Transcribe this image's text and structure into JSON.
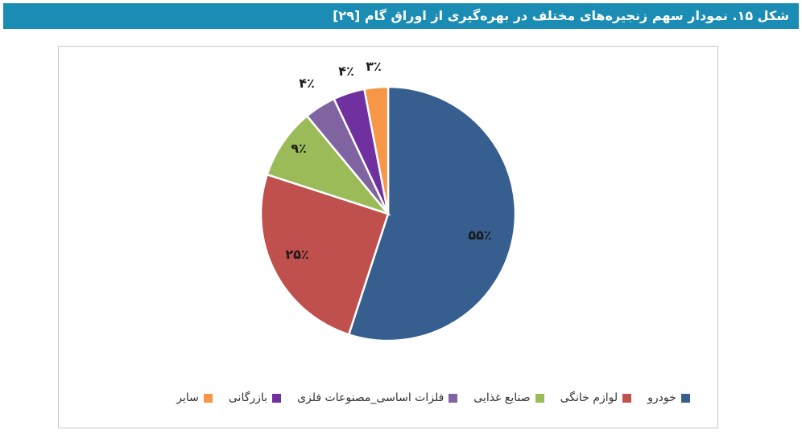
{
  "title": "شکل ۱۵. نمودار سهم زنجیره‌های مختلف در بهره‌گیری از اوراق گام [۲۹]",
  "chart_data": {
    "type": "pie",
    "slices": [
      {
        "label": "خودرو",
        "value": 55,
        "display": "۵۵٪",
        "color": "#365e8f"
      },
      {
        "label": "لوازم خانگی",
        "value": 25,
        "display": "۲۵٪",
        "color": "#c0504d"
      },
      {
        "label": "صنایع غذایی",
        "value": 9,
        "display": "۹٪",
        "color": "#9bbb59"
      },
      {
        "label": "فلزات اساسی_مصنوعات فلزی",
        "value": 4,
        "display": "۴٪",
        "color": "#8064a2"
      },
      {
        "label": "بازرگانی",
        "value": 4,
        "display": "۴٪",
        "color": "#7030a0"
      },
      {
        "label": "سایر",
        "value": 3,
        "display": "۳٪",
        "color": "#f79646"
      }
    ],
    "legend_position": "bottom"
  }
}
